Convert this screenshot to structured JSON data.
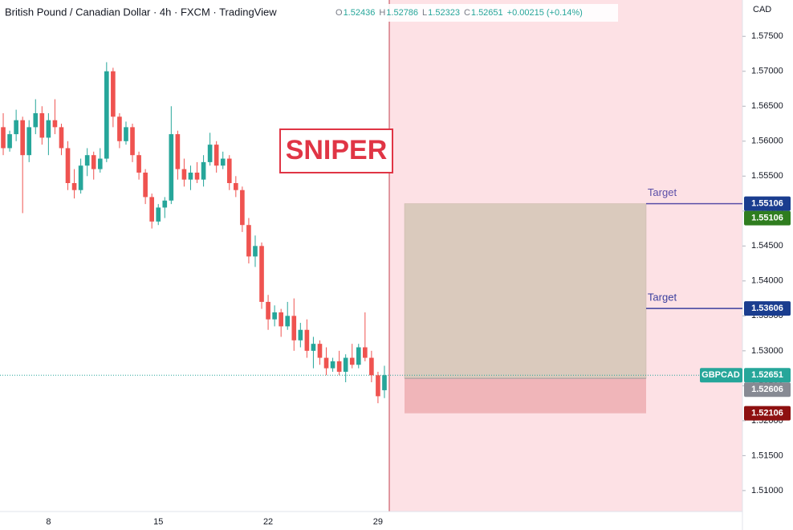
{
  "chart_data": {
    "type": "candlestick",
    "title": "British Pound / Canadian Dollar · 4h · FXCM · TradingView",
    "ohlc_legend": {
      "open_label": "O",
      "high_label": "H",
      "low_label": "L",
      "close_label": "C",
      "change": "+0.00215 (+0.14%)"
    },
    "annotation": "SNIPER",
    "y_unit": "CAD",
    "symbol": "GBPCAD",
    "up_color": "#26a69a",
    "down_color": "#ef5350",
    "grid": false,
    "categories": [
      null,
      null,
      null,
      null,
      null,
      null,
      null,
      "8",
      null,
      null,
      null,
      null,
      null,
      null,
      null,
      null,
      null,
      null,
      null,
      null,
      null,
      null,
      null,
      null,
      "15",
      null,
      null,
      null,
      null,
      null,
      null,
      null,
      null,
      null,
      null,
      null,
      null,
      null,
      null,
      null,
      null,
      "22",
      null,
      null,
      null,
      null,
      null,
      null,
      null,
      null,
      null,
      null,
      null,
      null,
      null,
      null,
      null,
      null,
      "29",
      null
    ],
    "open": [
      1.562,
      1.559,
      1.561,
      1.563,
      1.558,
      1.562,
      1.564,
      1.5605,
      1.563,
      1.562,
      1.559,
      1.554,
      1.553,
      1.5565,
      1.558,
      1.556,
      1.5575,
      1.57,
      1.5635,
      1.56,
      1.562,
      1.558,
      1.5555,
      1.552,
      1.5485,
      1.5505,
      1.5515,
      1.561,
      1.556,
      1.5545,
      1.5555,
      1.5545,
      1.557,
      1.5595,
      1.5565,
      1.5575,
      1.554,
      1.553,
      1.548,
      1.5435,
      1.545,
      1.537,
      1.5345,
      1.5355,
      1.5335,
      1.535,
      1.5315,
      1.533,
      1.53,
      1.531,
      1.529,
      1.5275,
      1.5285,
      1.527,
      1.529,
      1.528,
      1.5305,
      1.529,
      1.5265,
      1.52436
    ],
    "high": [
      1.564,
      1.5615,
      1.5645,
      1.5635,
      1.563,
      1.566,
      1.565,
      1.564,
      1.566,
      1.5625,
      1.56,
      1.556,
      1.5575,
      1.559,
      1.5585,
      1.559,
      1.5713,
      1.5705,
      1.564,
      1.5628,
      1.5625,
      1.5585,
      1.556,
      1.5525,
      1.551,
      1.552,
      1.565,
      1.5615,
      1.5575,
      1.5565,
      1.557,
      1.558,
      1.5612,
      1.56,
      1.5585,
      1.558,
      1.555,
      1.5535,
      1.549,
      1.5465,
      1.5455,
      1.538,
      1.5365,
      1.536,
      1.537,
      1.5375,
      1.534,
      1.5345,
      1.532,
      1.5315,
      1.5305,
      1.529,
      1.53,
      1.5295,
      1.531,
      1.531,
      1.5355,
      1.53,
      1.527,
      1.52786
    ],
    "low": [
      1.558,
      1.5585,
      1.56,
      1.5497,
      1.557,
      1.561,
      1.5595,
      1.558,
      1.561,
      1.558,
      1.553,
      1.5518,
      1.5525,
      1.555,
      1.5545,
      1.5555,
      1.557,
      1.562,
      1.559,
      1.5595,
      1.557,
      1.5545,
      1.551,
      1.5475,
      1.548,
      1.549,
      1.551,
      1.5545,
      1.5535,
      1.553,
      1.554,
      1.5535,
      1.5565,
      1.5555,
      1.556,
      1.553,
      1.552,
      1.547,
      1.5425,
      1.542,
      1.536,
      1.533,
      1.5335,
      1.532,
      1.533,
      1.53,
      1.5305,
      1.529,
      1.5275,
      1.528,
      1.5265,
      1.527,
      1.5265,
      1.5255,
      1.5275,
      1.5275,
      1.5285,
      1.5255,
      1.5225,
      1.52323
    ],
    "close": [
      1.559,
      1.561,
      1.563,
      1.558,
      1.562,
      1.564,
      1.5605,
      1.563,
      1.562,
      1.559,
      1.554,
      1.553,
      1.5565,
      1.558,
      1.556,
      1.5575,
      1.57,
      1.5635,
      1.56,
      1.562,
      1.558,
      1.5555,
      1.552,
      1.5485,
      1.5505,
      1.5515,
      1.561,
      1.556,
      1.5545,
      1.5555,
      1.5545,
      1.557,
      1.5595,
      1.5565,
      1.5575,
      1.554,
      1.553,
      1.548,
      1.5435,
      1.545,
      1.537,
      1.5345,
      1.5355,
      1.5335,
      1.535,
      1.5315,
      1.533,
      1.53,
      1.531,
      1.529,
      1.5275,
      1.5285,
      1.527,
      1.529,
      1.528,
      1.5305,
      1.529,
      1.5265,
      1.5235,
      1.52651
    ],
    "ylim": [
      1.507,
      1.5802
    ],
    "yticks": [
      {
        "value": 1.51,
        "label": "1.51000"
      },
      {
        "value": 1.515,
        "label": "1.51500"
      },
      {
        "value": 1.52,
        "label": "1.52000"
      },
      {
        "value": 1.525,
        "label": "1.52500"
      },
      {
        "value": 1.53,
        "label": "1.53000"
      },
      {
        "value": 1.535,
        "label": "1.53500"
      },
      {
        "value": 1.54,
        "label": "1.54000"
      },
      {
        "value": 1.545,
        "label": "1.54500"
      },
      {
        "value": 1.55,
        "label": "1.55000"
      },
      {
        "value": 1.555,
        "label": "1.55500"
      },
      {
        "value": 1.56,
        "label": "1.56000"
      },
      {
        "value": 1.565,
        "label": "1.56500"
      },
      {
        "value": 1.57,
        "label": "1.57000"
      },
      {
        "value": 1.575,
        "label": "1.57500"
      }
    ],
    "lines": [
      {
        "label": "Target",
        "value": 1.55106,
        "color": "#5b4fa8"
      },
      {
        "label": "Target",
        "value": 1.53606,
        "color": "#3b3f9e"
      }
    ],
    "position": {
      "entry": 1.52606,
      "target": 1.55106,
      "stop": 1.52106
    }
  }
}
